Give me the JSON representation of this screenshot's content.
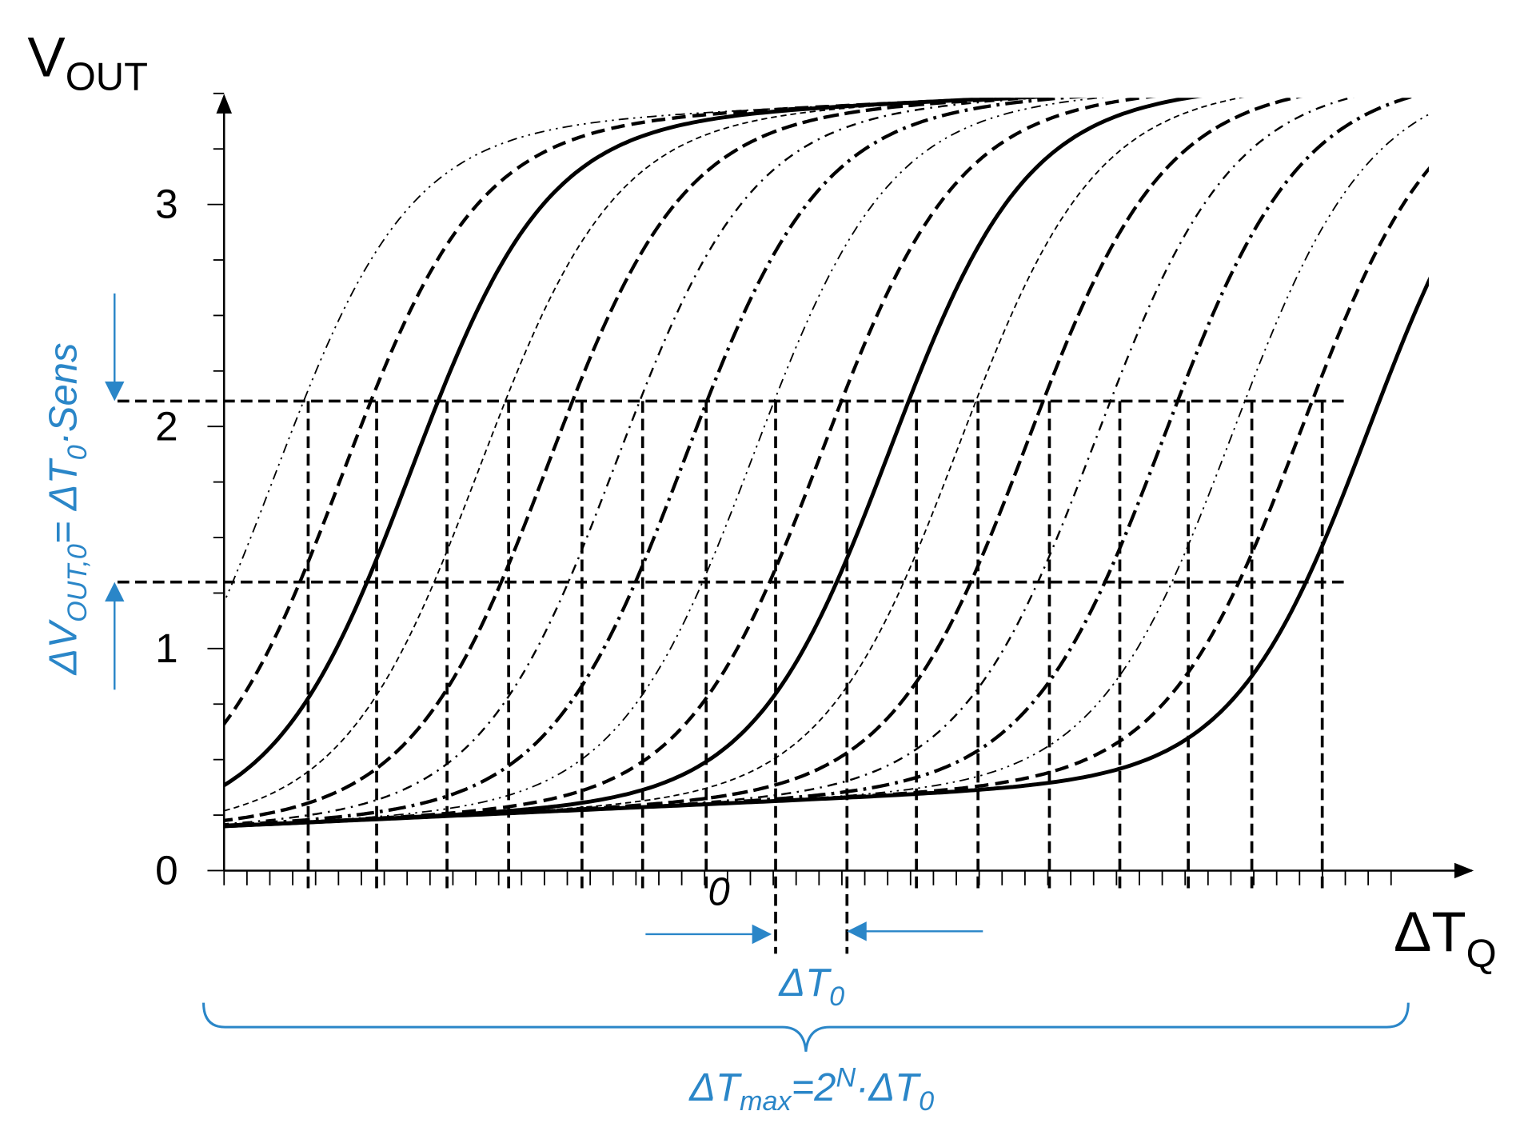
{
  "axes": {
    "y_label": {
      "main": "V",
      "sub": "OUT"
    },
    "x_label": {
      "main": "ΔT",
      "sub": "Q"
    },
    "y_tick_labels": [
      "0",
      "1",
      "2",
      "3"
    ],
    "x_tick_label": "0"
  },
  "annotations": {
    "delta_vout": [
      "ΔV",
      "OUT,0",
      "= ΔT",
      "0",
      "·Sens"
    ],
    "delta_t0": [
      "ΔT",
      "0"
    ],
    "delta_tmax": [
      "ΔT",
      "max",
      "=2",
      "N",
      "·ΔT",
      "0"
    ]
  }
}
